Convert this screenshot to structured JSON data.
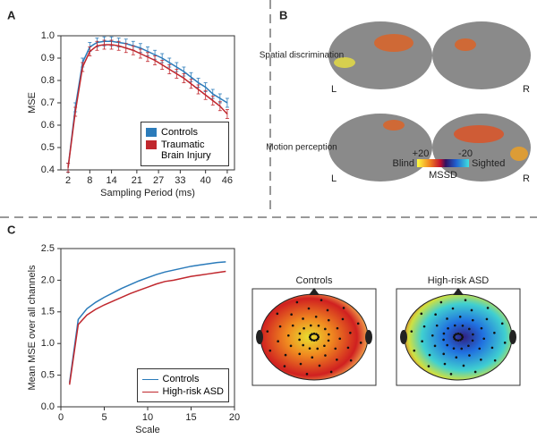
{
  "panel_labels": [
    "A",
    "B",
    "C"
  ],
  "chart_data": [
    {
      "type": "line",
      "xlabel": "Sampling Period (ms)",
      "ylabel": "MSE",
      "x": [
        2,
        4,
        6,
        8,
        10,
        12,
        14,
        16,
        18,
        20,
        22,
        24,
        26,
        28,
        30,
        32,
        34,
        36,
        38,
        40,
        42,
        44,
        46
      ],
      "xlim": [
        0,
        48
      ],
      "xticks": [
        2,
        8,
        14,
        21,
        27,
        33,
        40,
        46
      ],
      "ylim": [
        0.4,
        1.0
      ],
      "yticks": [
        0.4,
        0.5,
        0.6,
        0.7,
        0.8,
        0.9,
        {
          "value": 1.0,
          "label": "1.0"
        }
      ],
      "legend": "lower right",
      "series": [
        {
          "name": "Controls",
          "color": "#2b7bba",
          "values": [
            0.41,
            0.68,
            0.88,
            0.95,
            0.97,
            0.975,
            0.975,
            0.97,
            0.965,
            0.955,
            0.945,
            0.93,
            0.915,
            0.9,
            0.88,
            0.86,
            0.84,
            0.815,
            0.79,
            0.77,
            0.74,
            0.72,
            0.7
          ],
          "errors": [
            0.02,
            0.02,
            0.02,
            0.02,
            0.02,
            0.02,
            0.02,
            0.02,
            0.02,
            0.02,
            0.02,
            0.02,
            0.02,
            0.02,
            0.02,
            0.02,
            0.02,
            0.02,
            0.02,
            0.02,
            0.02,
            0.02,
            0.02
          ]
        },
        {
          "name": "Traumatic Brain Injury",
          "color": "#c0272d",
          "values": [
            0.41,
            0.66,
            0.86,
            0.93,
            0.955,
            0.96,
            0.96,
            0.955,
            0.945,
            0.935,
            0.92,
            0.905,
            0.89,
            0.87,
            0.85,
            0.83,
            0.81,
            0.785,
            0.76,
            0.735,
            0.71,
            0.685,
            0.65
          ],
          "errors": [
            0.02,
            0.02,
            0.02,
            0.02,
            0.02,
            0.02,
            0.02,
            0.02,
            0.02,
            0.02,
            0.02,
            0.02,
            0.02,
            0.02,
            0.02,
            0.02,
            0.02,
            0.02,
            0.02,
            0.02,
            0.02,
            0.02,
            0.02
          ]
        }
      ]
    },
    {
      "type": "line",
      "xlabel": "Scale",
      "ylabel": "Mean MSE over all channels",
      "x": [
        1,
        2,
        3,
        4,
        5,
        6,
        7,
        8,
        9,
        10,
        11,
        12,
        13,
        14,
        15,
        16,
        17,
        18,
        19
      ],
      "xlim": [
        0,
        20
      ],
      "xticks": [
        0,
        5,
        10,
        15,
        20
      ],
      "ylim": [
        0,
        2.5
      ],
      "yticks": [
        {
          "value": 0,
          "label": "0.0"
        },
        0.5,
        {
          "value": 1.0,
          "label": "1.0"
        },
        1.5,
        {
          "value": 2.0,
          "label": "2.0"
        },
        2.5
      ],
      "legend": "lower right",
      "series": [
        {
          "name": "Controls",
          "color": "#2b7bba",
          "values": [
            0.38,
            1.38,
            1.55,
            1.65,
            1.73,
            1.8,
            1.87,
            1.93,
            1.99,
            2.04,
            2.09,
            2.13,
            2.16,
            2.19,
            2.22,
            2.24,
            2.26,
            2.28,
            2.29
          ]
        },
        {
          "name": "High-risk ASD",
          "color": "#c0272d",
          "values": [
            0.35,
            1.3,
            1.45,
            1.54,
            1.61,
            1.67,
            1.73,
            1.79,
            1.84,
            1.89,
            1.94,
            1.98,
            2.0,
            2.03,
            2.06,
            2.08,
            2.1,
            2.12,
            2.14
          ]
        }
      ]
    }
  ],
  "brain": {
    "rows": [
      "Spatial discrimination",
      "Motion perception"
    ],
    "left": "L",
    "right": "R",
    "colorbar": {
      "max_label": "+20",
      "min_label": "-20",
      "left_label": "Blind",
      "right_label": "Sighted",
      "title": "MSSD"
    }
  },
  "topomaps": {
    "titles": [
      "Controls",
      "High-risk ASD"
    ]
  }
}
